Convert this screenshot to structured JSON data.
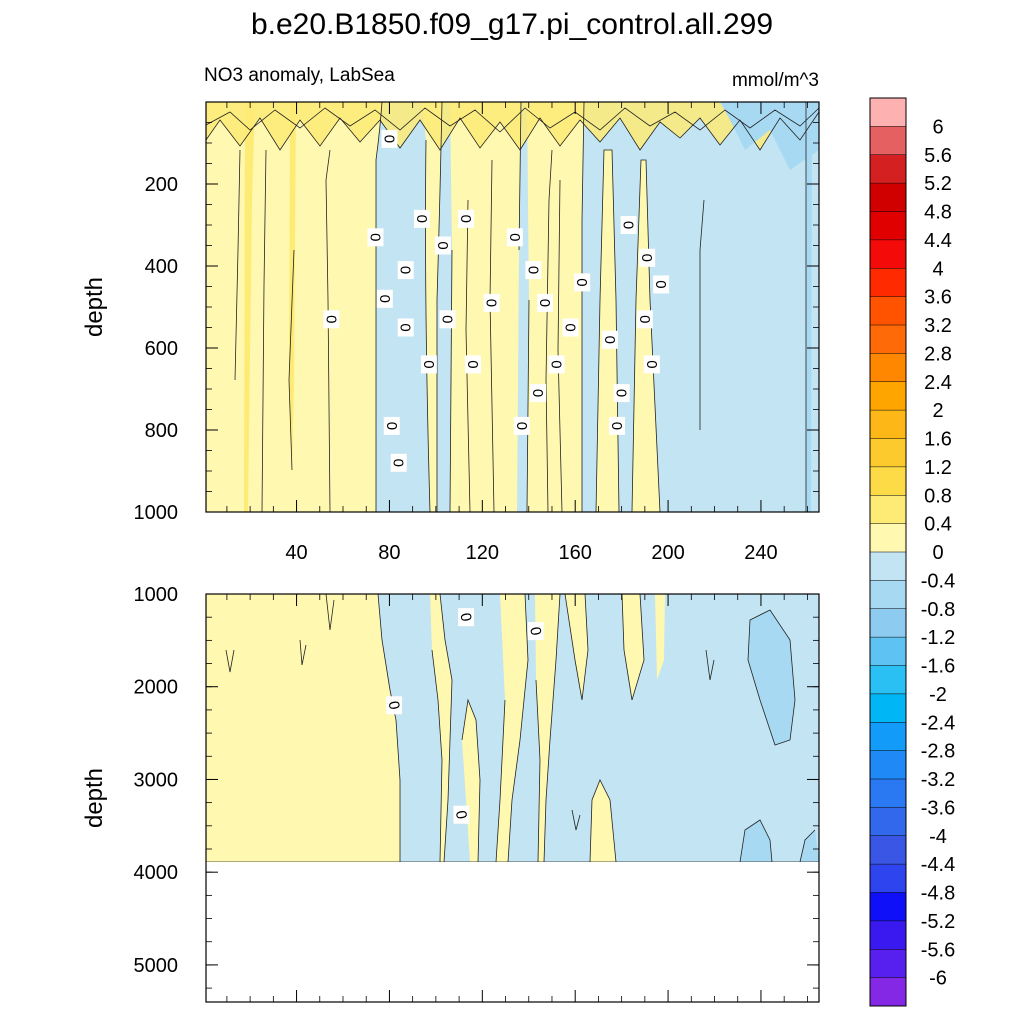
{
  "figure_title": "b.e20.B1850.f09_g17.pi_control.all.299",
  "chart_data": {
    "type": "heatmap",
    "variable": "NO3 anomaly, LabSea",
    "units": "mmol/m^3",
    "x_ticks": [
      "40",
      "80",
      "120",
      "160",
      "200",
      "240"
    ],
    "x_range": [
      1,
      265
    ],
    "panels": [
      {
        "name": "upper",
        "ylabel": "depth",
        "y_range": [
          0,
          1000
        ],
        "y_ticks": [
          "200",
          "400",
          "600",
          "800",
          "1000"
        ],
        "ocean_floor_depth": null,
        "contour_labels": [
          [
            80,
            90
          ],
          [
            94,
            285
          ],
          [
            113,
            285
          ],
          [
            74,
            330
          ],
          [
            103,
            350
          ],
          [
            134,
            330
          ],
          [
            183,
            300
          ],
          [
            87,
            410
          ],
          [
            142,
            410
          ],
          [
            191,
            380
          ],
          [
            78,
            480
          ],
          [
            124,
            490
          ],
          [
            147,
            490
          ],
          [
            163,
            440
          ],
          [
            197,
            445
          ],
          [
            55,
            530
          ],
          [
            105,
            530
          ],
          [
            87,
            550
          ],
          [
            158,
            550
          ],
          [
            190,
            530
          ],
          [
            175,
            580
          ],
          [
            97,
            640
          ],
          [
            116,
            640
          ],
          [
            152,
            640
          ],
          [
            193,
            640
          ],
          [
            144,
            710
          ],
          [
            180,
            710
          ],
          [
            81,
            790
          ],
          [
            137,
            790
          ],
          [
            178,
            790
          ],
          [
            84,
            880
          ]
        ]
      },
      {
        "name": "lower",
        "ylabel": "depth",
        "y_range": [
          1000,
          5400
        ],
        "y_ticks": [
          "1000",
          "2000",
          "3000",
          "4000",
          "5000"
        ],
        "ocean_floor_depth": 3880,
        "contour_labels": [
          [
            113,
            1250
          ],
          [
            143,
            1400
          ],
          [
            82,
            2200
          ],
          [
            111,
            3380
          ]
        ]
      }
    ],
    "colorbar": {
      "levels": [
        "6",
        "5.6",
        "5.2",
        "4.8",
        "4.4",
        "4",
        "3.6",
        "3.2",
        "2.8",
        "2.4",
        "2",
        "1.6",
        "1.2",
        "0.8",
        "0.4",
        "0",
        "-0.4",
        "-0.8",
        "-1.2",
        "-1.6",
        "-2",
        "-2.4",
        "-2.8",
        "-3.2",
        "-3.6",
        "-4",
        "-4.4",
        "-4.8",
        "-5.2",
        "-5.6",
        "-6"
      ],
      "colors": [
        "#FDB1B1",
        "#E56060",
        "#D42020",
        "#D00000",
        "#E00000",
        "#F50A0A",
        "#FF2A00",
        "#FF5300",
        "#FF6A08",
        "#FF8700",
        "#FFA500",
        "#FDB817",
        "#FDCA2E",
        "#FDDB46",
        "#FDEB75",
        "#FFF8B0",
        "#C2E4F3",
        "#A8D9F2",
        "#8DCCF0",
        "#5EC2F3",
        "#2AC0F3",
        "#00B6F5",
        "#129BF8",
        "#1F8AF5",
        "#2A79F2",
        "#3268EC",
        "#3957E4",
        "#2D44EE",
        "#1010F8",
        "#3A18F0",
        "#5820EE",
        "#8428E6"
      ]
    },
    "contour_label_text": "0"
  }
}
